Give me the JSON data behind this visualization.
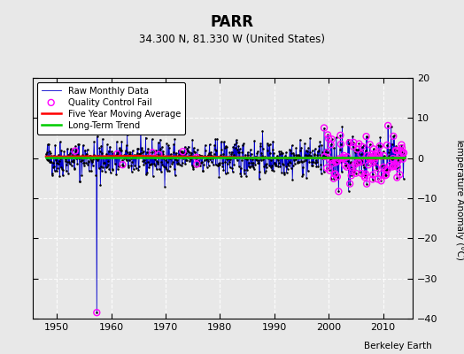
{
  "title": "PARR",
  "subtitle": "34.300 N, 81.330 W (United States)",
  "ylabel": "Temperature Anomaly (°C)",
  "credit": "Berkeley Earth",
  "xlim": [
    1945.5,
    2015.5
  ],
  "ylim": [
    -40,
    20
  ],
  "yticks": [
    -40,
    -30,
    -20,
    -10,
    0,
    10,
    20
  ],
  "xticks": [
    1950,
    1960,
    1970,
    1980,
    1990,
    2000,
    2010
  ],
  "bg_color": "#e8e8e8",
  "plot_bg_color": "#e8e8e8",
  "grid_color": "#ffffff",
  "raw_color": "#0000cc",
  "raw_dot_color": "#000000",
  "qc_color": "#ff00ff",
  "moving_avg_color": "#ff0000",
  "trend_color": "#00cc00",
  "seed": 42,
  "n_points": 792,
  "start_year": 1948.0,
  "end_year": 2013.9,
  "outlier_year": 1957.3,
  "outlier_value": -38.5,
  "legend_loc": "upper left"
}
